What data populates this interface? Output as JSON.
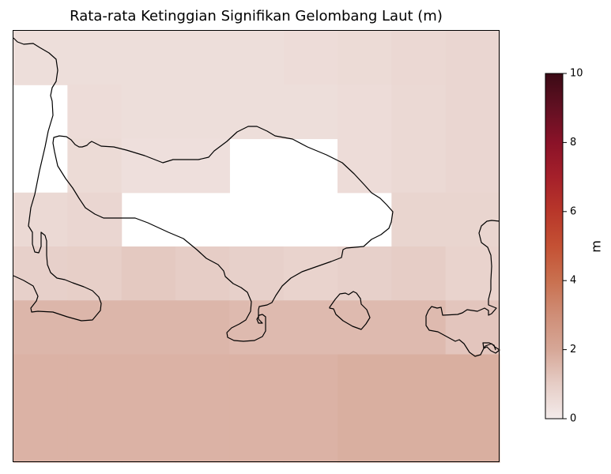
{
  "title": "Rata-rata Ketinggian Signifikan Gelombang Laut (m)",
  "map": {
    "grid_rows": 8,
    "grid_cols": 9,
    "cells": [
      [
        0.45,
        0.45,
        0.45,
        0.45,
        0.45,
        0.5,
        0.55,
        0.65,
        0.7
      ],
      [
        null,
        0.5,
        0.45,
        0.45,
        0.45,
        0.45,
        0.5,
        0.6,
        0.7
      ],
      [
        null,
        0.55,
        0.4,
        0.4,
        null,
        null,
        0.5,
        0.6,
        0.7
      ],
      [
        0.6,
        0.7,
        null,
        null,
        null,
        null,
        null,
        0.75,
        0.75
      ],
      [
        0.9,
        0.95,
        1.1,
        1.0,
        0.9,
        0.8,
        0.9,
        1.0,
        0.8
      ],
      [
        1.6,
        1.6,
        1.6,
        1.6,
        1.5,
        1.5,
        1.5,
        1.5,
        1.2
      ],
      [
        1.7,
        1.7,
        1.7,
        1.7,
        1.7,
        1.7,
        1.8,
        1.8,
        1.8
      ],
      [
        1.7,
        1.7,
        1.7,
        1.7,
        1.7,
        1.7,
        1.8,
        1.8,
        1.8
      ]
    ]
  },
  "colorbar": {
    "label": "m",
    "min": 0,
    "max": 10,
    "ticks": [
      {
        "value": 0,
        "label": "0"
      },
      {
        "value": 2,
        "label": "2"
      },
      {
        "value": 4,
        "label": "4"
      },
      {
        "value": 6,
        "label": "6"
      },
      {
        "value": 8,
        "label": "8"
      },
      {
        "value": 10,
        "label": "10"
      }
    ],
    "stops": [
      {
        "value": 0,
        "color": "#f3ebea"
      },
      {
        "value": 1,
        "color": "#e6cdc6"
      },
      {
        "value": 2,
        "color": "#d6a797"
      },
      {
        "value": 3,
        "color": "#cf8e77"
      },
      {
        "value": 4,
        "color": "#c9704f"
      },
      {
        "value": 5,
        "color": "#c45134"
      },
      {
        "value": 6,
        "color": "#b8372a"
      },
      {
        "value": 7,
        "color": "#a5202a"
      },
      {
        "value": 8,
        "color": "#8a1228"
      },
      {
        "value": 9,
        "color": "#621022"
      },
      {
        "value": 10,
        "color": "#3b0a15"
      }
    ]
  }
}
